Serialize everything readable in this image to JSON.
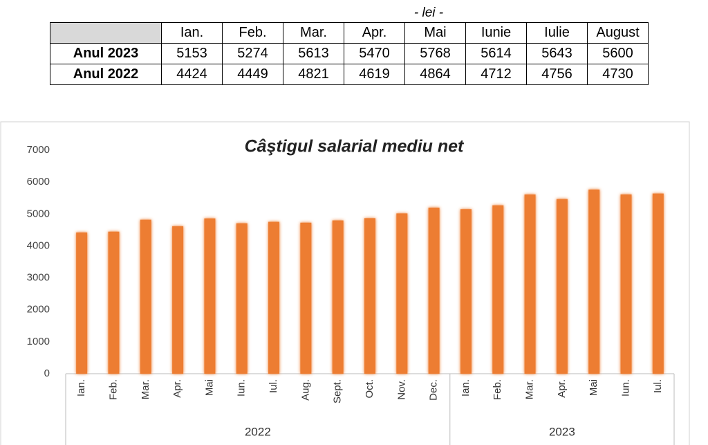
{
  "table": {
    "unit": "- lei -",
    "columns": [
      "Ian.",
      "Feb.",
      "Mar.",
      "Apr.",
      "Mai",
      "Iunie",
      "Iulie",
      "August"
    ],
    "rows": [
      {
        "label": "Anul 2023",
        "values": [
          5153,
          5274,
          5613,
          5470,
          5768,
          5614,
          5643,
          5600
        ]
      },
      {
        "label": "Anul 2022",
        "values": [
          4424,
          4449,
          4821,
          4619,
          4864,
          4712,
          4756,
          4730
        ]
      }
    ]
  },
  "chart_data": {
    "type": "bar",
    "title": "Câştigul salarial mediu net",
    "color": "#ed7d31",
    "ylim": [
      0,
      7000
    ],
    "yticks": [
      0,
      1000,
      2000,
      3000,
      4000,
      5000,
      6000,
      7000
    ],
    "grid": false,
    "groups": [
      {
        "name": "2022",
        "categories": [
          "Ian.",
          "Feb.",
          "Mar.",
          "Apr.",
          "Mai",
          "Iun.",
          "Iul.",
          "Aug.",
          "Sept.",
          "Oct.",
          "Nov.",
          "Dec."
        ],
        "values": [
          4424,
          4449,
          4821,
          4619,
          4864,
          4712,
          4756,
          4730,
          4800,
          4870,
          5020,
          5200
        ]
      },
      {
        "name": "2023",
        "categories": [
          "Ian.",
          "Feb.",
          "Mar.",
          "Apr.",
          "Mai",
          "Iun.",
          "Iul."
        ],
        "values": [
          5153,
          5274,
          5613,
          5470,
          5768,
          5614,
          5643
        ]
      }
    ]
  }
}
